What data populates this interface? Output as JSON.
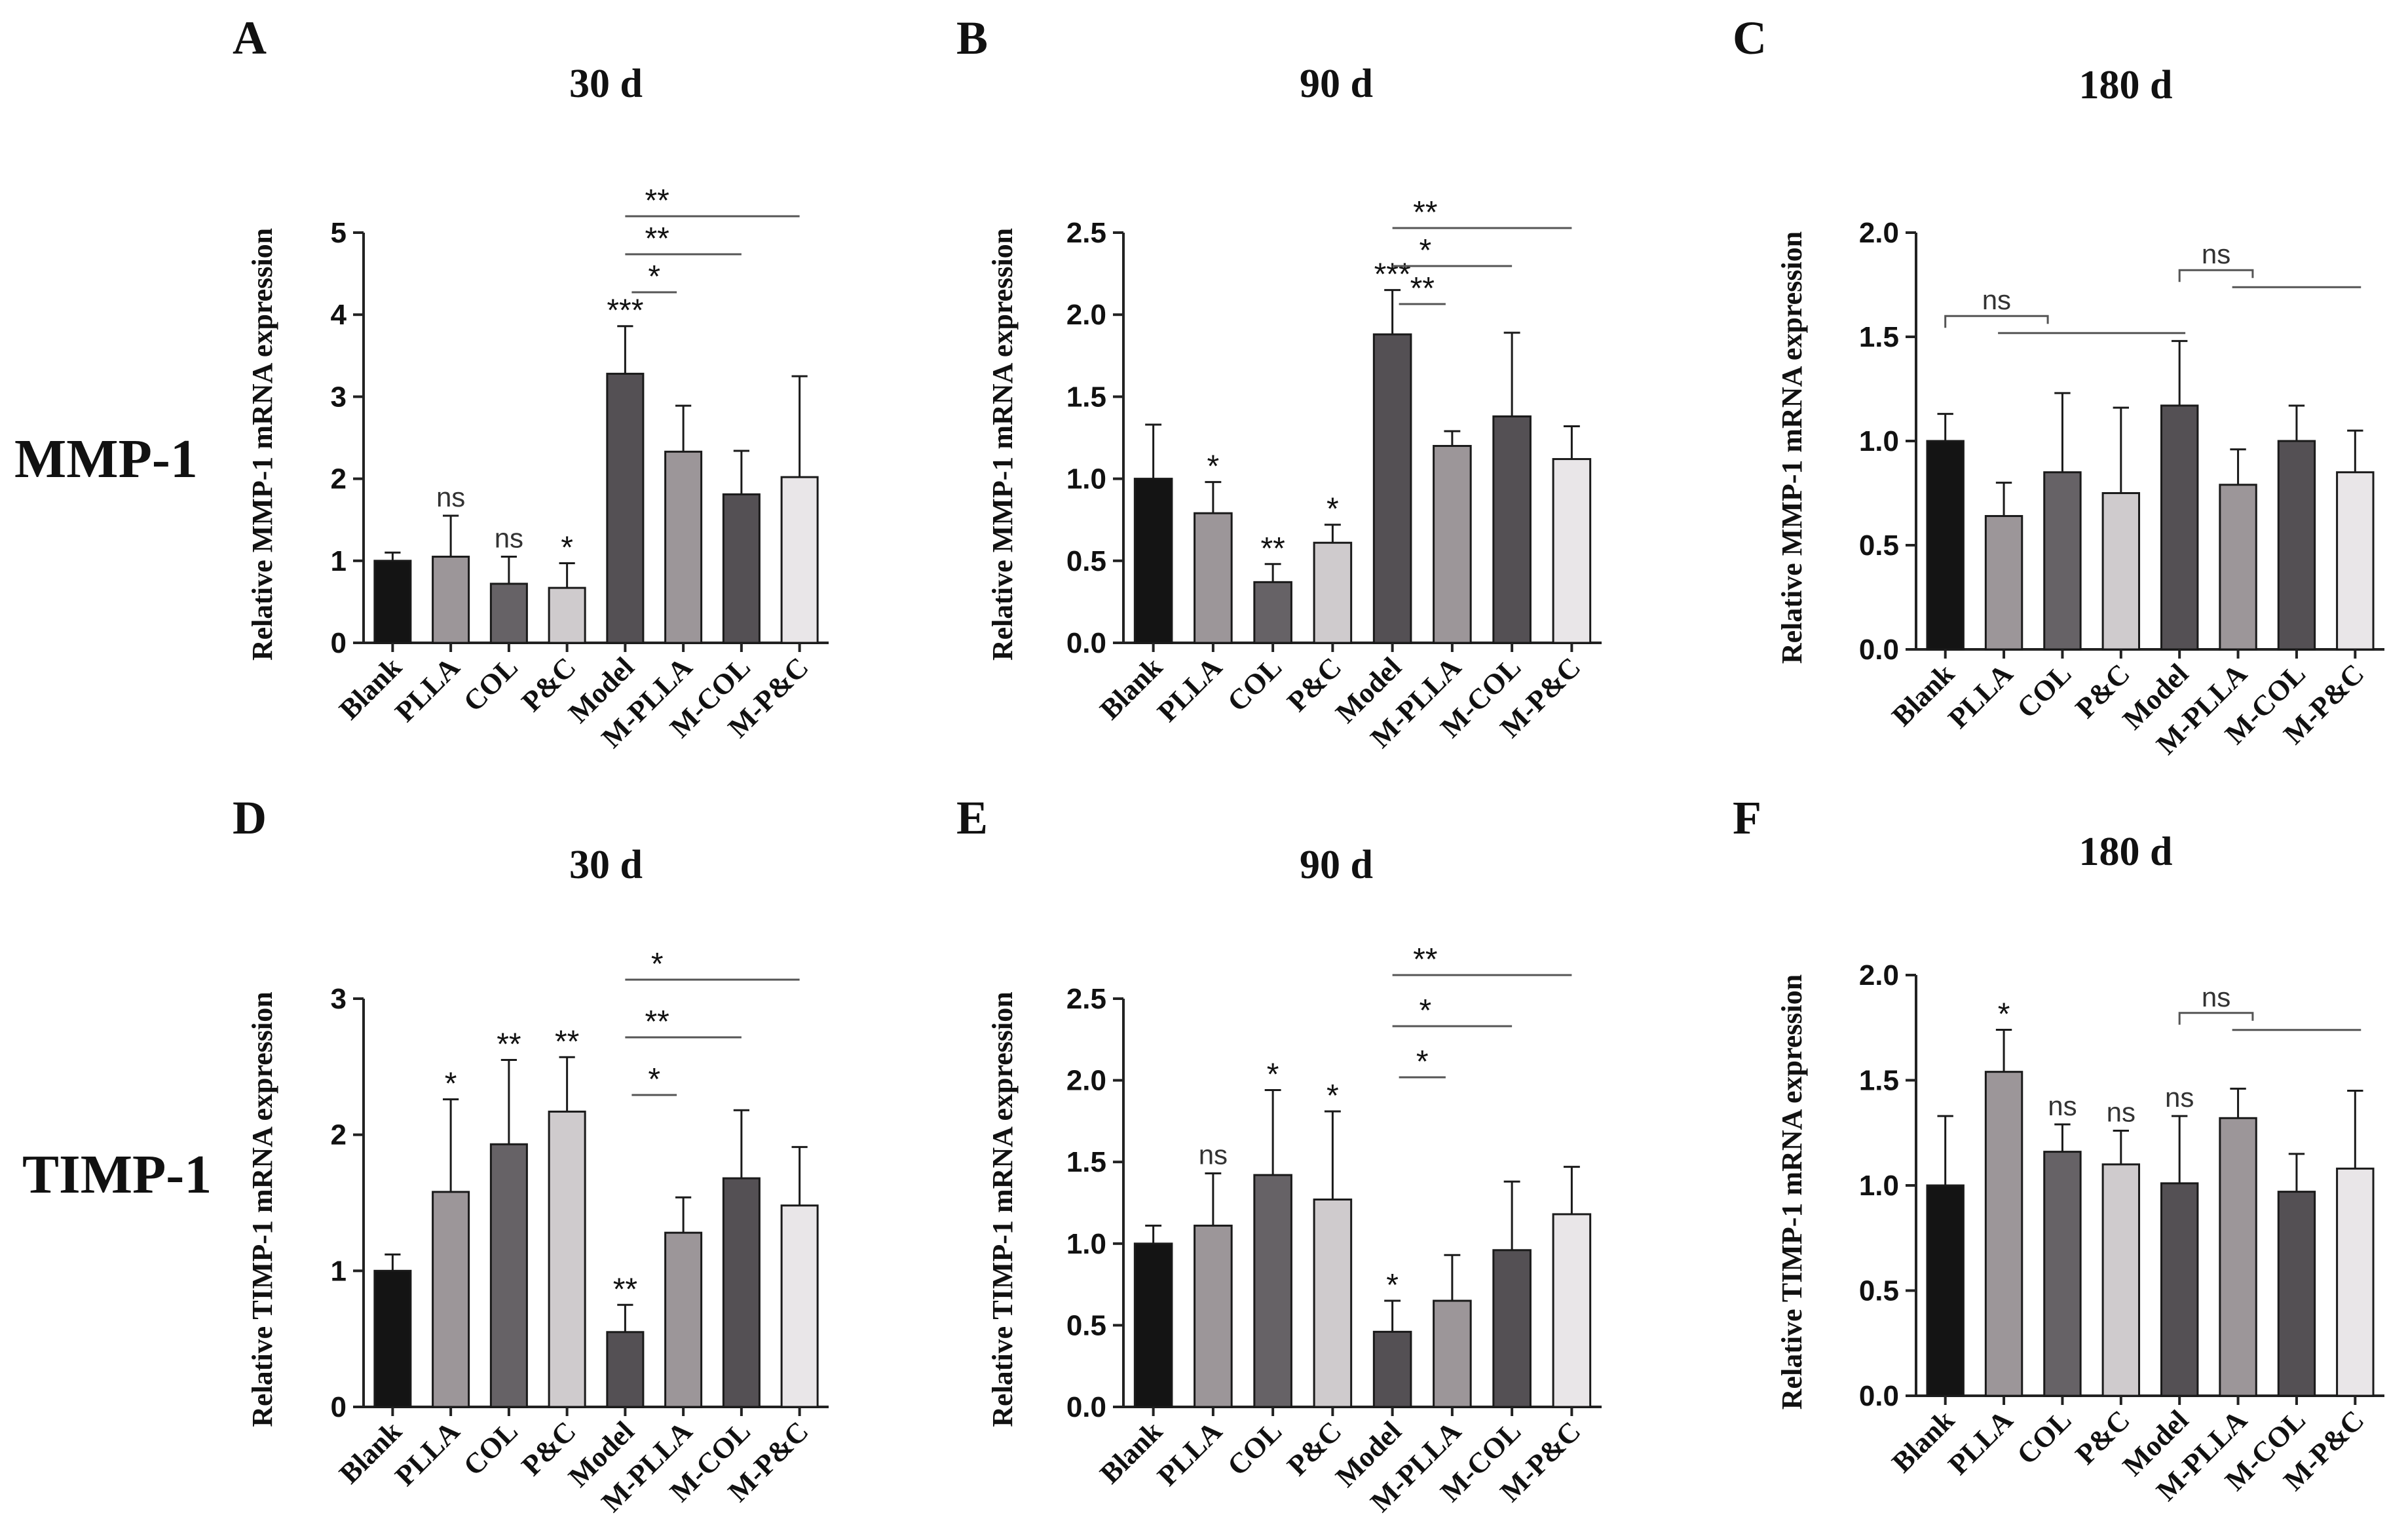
{
  "figure": {
    "row_labels": [
      "MMP-1",
      "TIMP-1"
    ],
    "colors": {
      "Blank": "#141414",
      "PLLA": "#9c9699",
      "COL": "#666266",
      "P&C": "#cfcbcd",
      "Model": "#545054",
      "M-PLLA": "#9c9699",
      "M-COL": "#545054",
      "M-P&C": "#e9e6e8",
      "axis": "#222222",
      "bracket": "#555555"
    }
  },
  "chart_data": [
    {
      "panel": "A",
      "type": "bar",
      "title": "30 d",
      "ylabel": "Relative MMP-1 mRNA expression",
      "categories": [
        "Blank",
        "PLLA",
        "COL",
        "P&C",
        "Model",
        "M-PLLA",
        "M-COL",
        "M-P&C"
      ],
      "values": [
        1.0,
        1.05,
        0.72,
        0.67,
        3.28,
        2.33,
        1.81,
        2.02
      ],
      "errors": [
        0.1,
        0.5,
        0.33,
        0.3,
        0.58,
        0.56,
        0.53,
        1.23
      ],
      "ylim": [
        0,
        5
      ],
      "yticks": [
        "0",
        "1",
        "2",
        "3",
        "4",
        "5"
      ],
      "annotations": [
        "",
        "ns",
        "ns",
        "*",
        "***",
        "",
        "",
        ""
      ],
      "brackets": [
        {
          "from": 4,
          "to": 5,
          "label": "*",
          "level": 0
        },
        {
          "from": 4,
          "to": 6,
          "label": "**",
          "level": 1
        },
        {
          "from": 4,
          "to": 7,
          "label": "**",
          "level": 2
        }
      ]
    },
    {
      "panel": "B",
      "type": "bar",
      "title": "90 d",
      "ylabel": "Relative MMP-1 mRNA expression",
      "categories": [
        "Blank",
        "PLLA",
        "COL",
        "P&C",
        "Model",
        "M-PLLA",
        "M-COL",
        "M-P&C"
      ],
      "values": [
        1.0,
        0.79,
        0.37,
        0.61,
        1.88,
        1.2,
        1.38,
        1.12
      ],
      "errors": [
        0.33,
        0.19,
        0.11,
        0.11,
        0.27,
        0.09,
        0.51,
        0.2
      ],
      "ylim": [
        0,
        2.5
      ],
      "yticks": [
        "0.0",
        "0.5",
        "1.0",
        "1.5",
        "2.0",
        "2.5"
      ],
      "annotations": [
        "",
        "*",
        "**",
        "*",
        "***",
        "",
        "",
        ""
      ],
      "brackets": [
        {
          "from": 4,
          "to": 5,
          "label": "**",
          "level": 0
        },
        {
          "from": 4,
          "to": 6,
          "label": "*",
          "level": 1
        },
        {
          "from": 4,
          "to": 7,
          "label": "**",
          "level": 2
        }
      ]
    },
    {
      "panel": "C",
      "type": "bar",
      "title": "180 d",
      "ylabel": "Relative MMP-1 mRNA expression",
      "categories": [
        "Blank",
        "PLLA",
        "COL",
        "P&C",
        "Model",
        "M-PLLA",
        "M-COL",
        "M-P&C"
      ],
      "values": [
        1.0,
        0.64,
        0.85,
        0.75,
        1.17,
        0.79,
        1.0,
        0.85
      ],
      "errors": [
        0.13,
        0.16,
        0.38,
        0.41,
        0.31,
        0.17,
        0.17,
        0.2
      ],
      "ylim": [
        0,
        2.0
      ],
      "yticks": [
        "0.0",
        "0.5",
        "1.0",
        "1.5",
        "2.0"
      ],
      "annotations": [
        "",
        "",
        "",
        "",
        "",
        "",
        "",
        ""
      ],
      "brackets_ns": [
        {
          "ref": 0,
          "targets": [
            1,
            2,
            3,
            4
          ],
          "label": "ns",
          "y": 1.6
        },
        {
          "ref": 4,
          "targets": [
            5,
            6,
            7
          ],
          "label": "ns",
          "y": 1.82
        }
      ]
    },
    {
      "panel": "D",
      "type": "bar",
      "title": "30 d",
      "ylabel": "Relative TIMP-1 mRNA expression",
      "categories": [
        "Blank",
        "PLLA",
        "COL",
        "P&C",
        "Model",
        "M-PLLA",
        "M-COL",
        "M-P&C"
      ],
      "values": [
        1.0,
        1.58,
        1.93,
        2.17,
        0.55,
        1.28,
        1.68,
        1.48
      ],
      "errors": [
        0.12,
        0.68,
        0.62,
        0.4,
        0.2,
        0.26,
        0.5,
        0.43
      ],
      "ylim": [
        0,
        3
      ],
      "yticks": [
        "0",
        "1",
        "2",
        "3"
      ],
      "annotations": [
        "",
        "*",
        "**",
        "**",
        "**",
        "",
        "",
        ""
      ],
      "brackets": [
        {
          "from": 4,
          "to": 5,
          "label": "*",
          "level": 0
        },
        {
          "from": 4,
          "to": 6,
          "label": "**",
          "level": 1
        },
        {
          "from": 4,
          "to": 7,
          "label": "*",
          "level": 2
        }
      ]
    },
    {
      "panel": "E",
      "type": "bar",
      "title": "90 d",
      "ylabel": "Relative TIMP-1 mRNA expression",
      "categories": [
        "Blank",
        "PLLA",
        "COL",
        "P&C",
        "Model",
        "M-PLLA",
        "M-COL",
        "M-P&C"
      ],
      "values": [
        1.0,
        1.11,
        1.42,
        1.27,
        0.46,
        0.65,
        0.96,
        1.18
      ],
      "errors": [
        0.11,
        0.32,
        0.52,
        0.54,
        0.19,
        0.28,
        0.42,
        0.29
      ],
      "ylim": [
        0,
        2.5
      ],
      "yticks": [
        "0.0",
        "0.5",
        "1.0",
        "1.5",
        "2.0",
        "2.5"
      ],
      "annotations": [
        "",
        "ns",
        "*",
        "*",
        "*",
        "",
        "",
        ""
      ],
      "brackets": [
        {
          "from": 4,
          "to": 5,
          "label": "*",
          "level": 0
        },
        {
          "from": 4,
          "to": 6,
          "label": "*",
          "level": 1
        },
        {
          "from": 4,
          "to": 7,
          "label": "**",
          "level": 2
        }
      ]
    },
    {
      "panel": "F",
      "type": "bar",
      "title": "180 d",
      "ylabel": "Relative TIMP-1 mRNA expression",
      "categories": [
        "Blank",
        "PLLA",
        "COL",
        "P&C",
        "Model",
        "M-PLLA",
        "M-COL",
        "M-P&C"
      ],
      "values": [
        1.0,
        1.54,
        1.16,
        1.1,
        1.01,
        1.32,
        0.97,
        1.08
      ],
      "errors": [
        0.33,
        0.2,
        0.13,
        0.16,
        0.32,
        0.14,
        0.18,
        0.37
      ],
      "ylim": [
        0,
        2.0
      ],
      "yticks": [
        "0.0",
        "0.5",
        "1.0",
        "1.5",
        "2.0"
      ],
      "annotations": [
        "",
        "*",
        "ns",
        "ns",
        "ns",
        "",
        "",
        ""
      ],
      "brackets_ns": [
        {
          "ref": 4,
          "targets": [
            5,
            6,
            7
          ],
          "label": "ns",
          "y": 1.82
        }
      ]
    }
  ]
}
